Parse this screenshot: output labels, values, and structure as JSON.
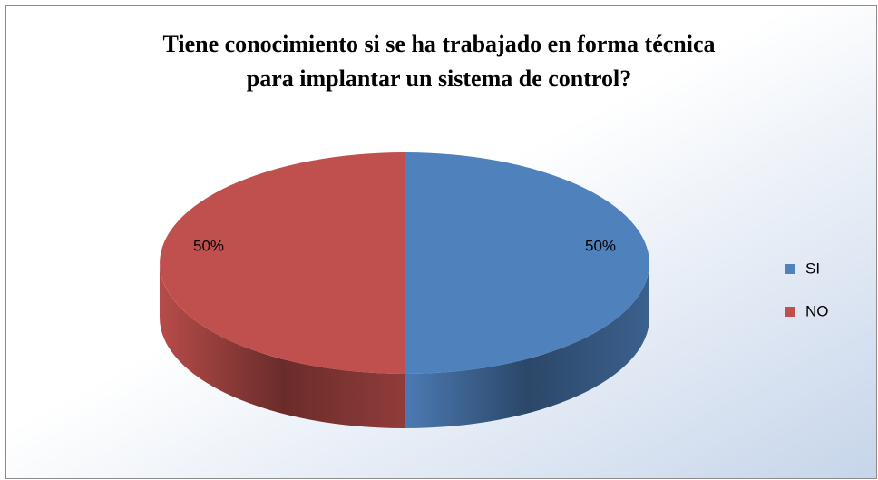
{
  "chart_data": {
    "type": "pie",
    "title": "Tiene conocimiento si se ha trabajado en forma técnica para implantar un sistema de control?",
    "categories": [
      "SI",
      "NO"
    ],
    "values": [
      50,
      50
    ],
    "value_labels": [
      "50%",
      "50%"
    ],
    "colors": [
      "#4f81bd",
      "#c0504d"
    ],
    "legend": "right"
  }
}
